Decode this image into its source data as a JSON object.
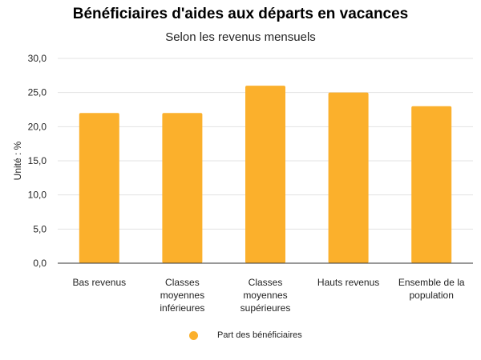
{
  "chart_data": {
    "type": "bar",
    "title": "Bénéficiaires d'aides aux départs en vacances",
    "subtitle": "Selon les revenus mensuels",
    "ylabel": "Unité : %",
    "xlabel": "",
    "ylim": [
      0,
      30
    ],
    "yticks": [
      "0,0",
      "5,0",
      "10,0",
      "15,0",
      "20,0",
      "25,0",
      "30,0"
    ],
    "categories": [
      [
        "Bas revenus"
      ],
      [
        "Classes",
        "moyennes",
        "inférieures"
      ],
      [
        "Classes",
        "moyennes",
        "supérieures"
      ],
      [
        "Hauts revenus"
      ],
      [
        "Ensemble de la",
        "population"
      ]
    ],
    "series": [
      {
        "name": "Part des bénéficiaires",
        "values": [
          22,
          22,
          26,
          25,
          23
        ],
        "color": "#FBB02C"
      }
    ],
    "grid": true,
    "legend_position": "bottom"
  }
}
